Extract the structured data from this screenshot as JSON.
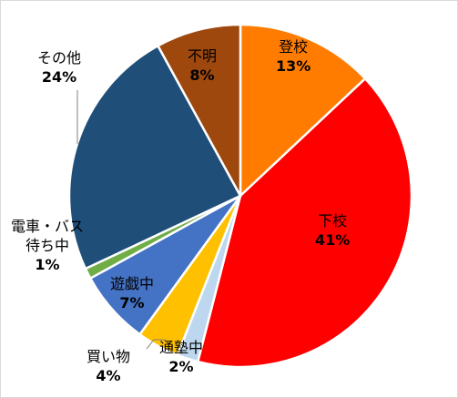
{
  "chart_data": {
    "type": "pie",
    "start_angle_deg": 0,
    "direction": "clockwise",
    "slice_border_color": "#ffffff",
    "slices": [
      {
        "label": "登校",
        "value": 13,
        "value_label": "13%",
        "color": "#ff7c00"
      },
      {
        "label": "下校",
        "value": 41,
        "value_label": "41%",
        "color": "#ff0000"
      },
      {
        "label": "通塾中",
        "value": 2,
        "value_label": "2%",
        "color": "#bdd7ee"
      },
      {
        "label": "買い物",
        "value": 4,
        "value_label": "4%",
        "color": "#ffc000"
      },
      {
        "label": "遊戯中",
        "value": 7,
        "value_label": "7%",
        "color": "#4472c4"
      },
      {
        "label": "電車・バス待ち中",
        "value": 1,
        "value_label": "1%",
        "color": "#70ad47"
      },
      {
        "label": "その他",
        "value": 24,
        "value_label": "24%",
        "color": "#1f4e79"
      },
      {
        "label": "不明",
        "value": 8,
        "value_label": "8%",
        "color": "#9e480e"
      }
    ]
  }
}
